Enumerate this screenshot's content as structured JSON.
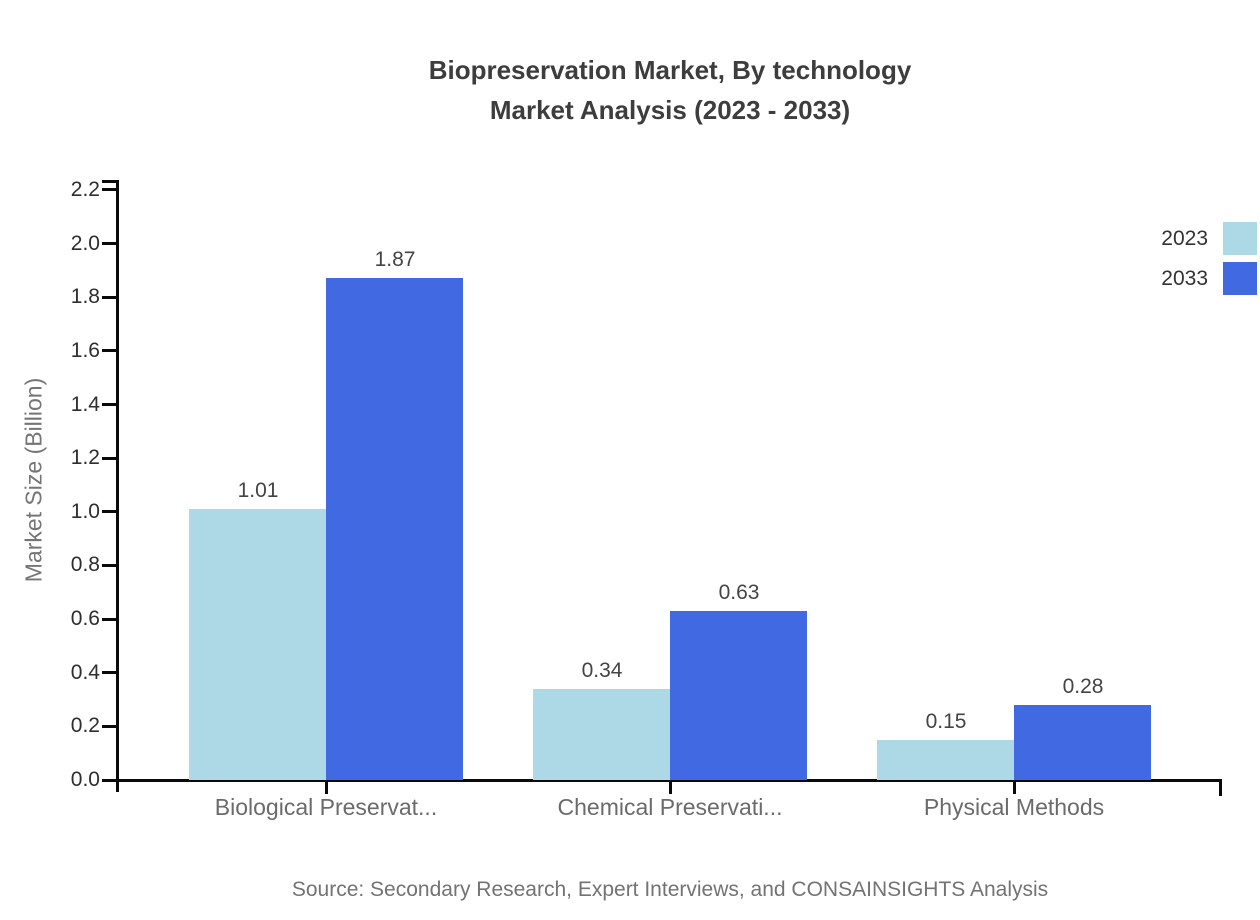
{
  "chart_data": {
    "type": "bar",
    "title_line1": "Biopreservation Market, By technology",
    "title_line2": "Market Analysis (2023 - 2033)",
    "ylabel": "Market Size (Billion)",
    "xlabel": "",
    "categories": [
      "Biological Preservat...",
      "Chemical Preservati...",
      "Physical Methods"
    ],
    "series": [
      {
        "name": "2023",
        "color": "#ADD8E6",
        "values": [
          1.01,
          0.34,
          0.15
        ]
      },
      {
        "name": "2033",
        "color": "#4169E1",
        "values": [
          1.87,
          0.63,
          0.28
        ]
      }
    ],
    "value_labels": [
      [
        "1.01",
        "0.34",
        "0.15"
      ],
      [
        "1.87",
        "0.63",
        "0.28"
      ]
    ],
    "ylim": [
      0.0,
      2.2
    ],
    "ytick_step": 0.2,
    "yticks": [
      "0.0",
      "0.2",
      "0.4",
      "0.6",
      "0.8",
      "1.0",
      "1.2",
      "1.4",
      "1.6",
      "1.8",
      "2.0",
      "2.2"
    ],
    "grid": false,
    "legend_position": "top-right",
    "colors": {
      "series_2023": "#ADD8E6",
      "series_2033": "#4169E1",
      "axis": "#0a0a0a"
    },
    "source": "Source: Secondary Research, Expert Interviews, and CONSAINSIGHTS Analysis"
  }
}
